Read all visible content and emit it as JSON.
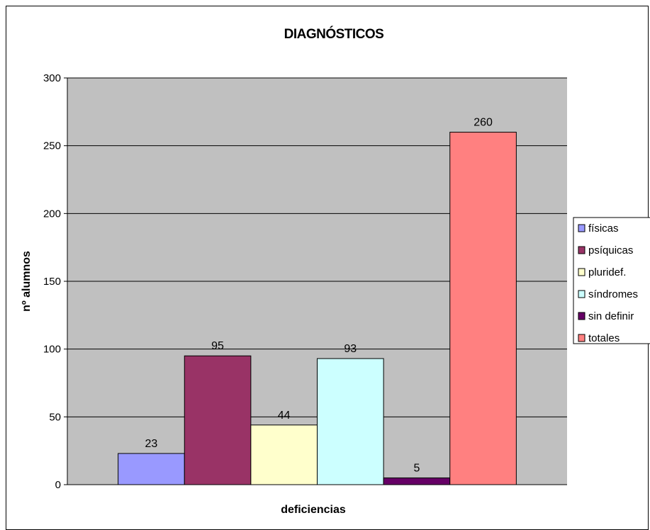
{
  "chart_data": {
    "type": "bar",
    "title": "DIAGNÓSTICOS",
    "xlabel": "deficiencias",
    "ylabel": "nº alumnos",
    "ylim": [
      0,
      300
    ],
    "yticks": [
      0,
      50,
      100,
      150,
      200,
      250,
      300
    ],
    "grid": true,
    "legend_position": "right",
    "plot_background": "#c0c0c0",
    "series": [
      {
        "name": "físicas",
        "values": [
          23
        ],
        "color": "#9999ff"
      },
      {
        "name": "psíquicas",
        "values": [
          95
        ],
        "color": "#993366"
      },
      {
        "name": "pluridef.",
        "values": [
          44
        ],
        "color": "#ffffcc"
      },
      {
        "name": "síndromes",
        "values": [
          93
        ],
        "color": "#ccffff"
      },
      {
        "name": "sin definir",
        "values": [
          5
        ],
        "color": "#660066"
      },
      {
        "name": "totales",
        "values": [
          260
        ],
        "color": "#ff8080"
      }
    ]
  }
}
